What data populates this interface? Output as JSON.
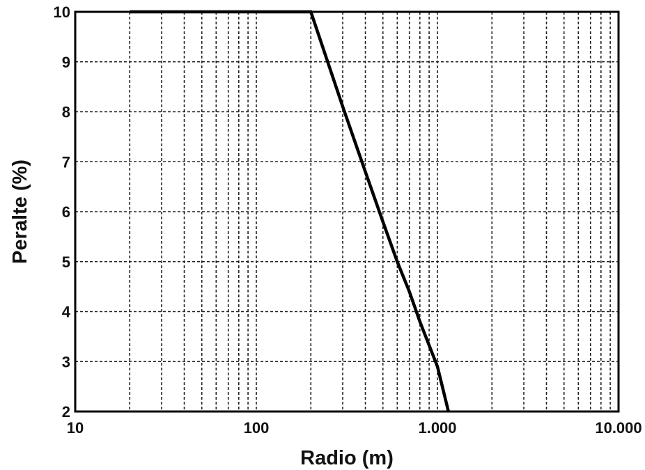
{
  "chart_data": {
    "type": "line",
    "title": "",
    "xlabel": "Radio (m)",
    "ylabel": "Peralte (%)",
    "x_scale": "log",
    "xlim": [
      10,
      10000
    ],
    "ylim": [
      2,
      10
    ],
    "grid": true,
    "x_ticks": [
      10,
      100,
      1000,
      10000
    ],
    "x_tick_labels": [
      "10",
      "100",
      "1.000",
      "10.000"
    ],
    "y_ticks": [
      2,
      3,
      4,
      5,
      6,
      7,
      8,
      9,
      10
    ],
    "y_tick_labels": [
      "2",
      "3",
      "4",
      "5",
      "6",
      "7",
      "8",
      "9",
      "10"
    ],
    "series": [
      {
        "x": [
          20,
          200,
          300,
          400,
          500,
          600,
          700,
          800,
          1000,
          1150
        ],
        "y": [
          10,
          10,
          8.1,
          6.8,
          5.8,
          5.0,
          4.4,
          3.8,
          2.9,
          2.0
        ]
      }
    ],
    "colors": {
      "line": "#000000",
      "grid": "#222222",
      "frame": "#000000",
      "background": "#ffffff"
    }
  }
}
